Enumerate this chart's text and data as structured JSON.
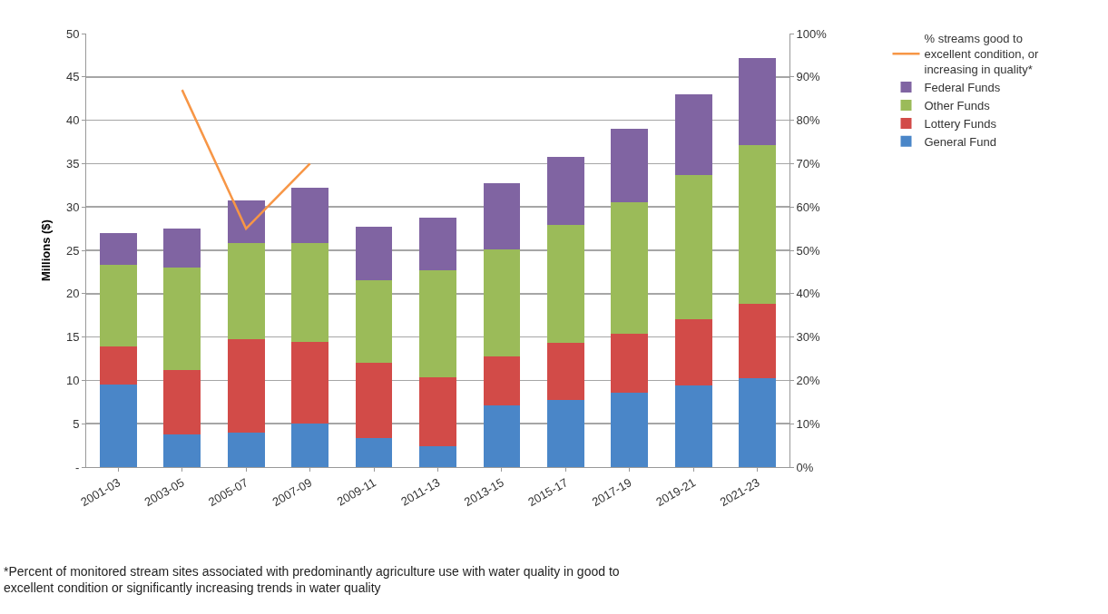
{
  "chart_data": {
    "type": "bar",
    "stacked": true,
    "ylabel": "Millions ($)",
    "categories": [
      "2001-03",
      "2003-05",
      "2005-07",
      "2007-09",
      "2009-11",
      "2011-13",
      "2013-15",
      "2015-17",
      "2017-19",
      "2019-21",
      "2021-23"
    ],
    "series": [
      {
        "name": "General Fund",
        "color": "#4a86c8",
        "values": [
          9.5,
          3.8,
          4.0,
          5.0,
          3.4,
          2.4,
          7.1,
          7.7,
          8.6,
          9.4,
          10.3
        ]
      },
      {
        "name": "Lottery Funds",
        "color": "#d24b48",
        "values": [
          4.4,
          7.4,
          10.7,
          9.4,
          8.6,
          8.0,
          5.7,
          6.6,
          6.8,
          7.7,
          8.5
        ]
      },
      {
        "name": "Other Funds",
        "color": "#9bbb59",
        "values": [
          9.4,
          11.8,
          11.1,
          11.4,
          9.5,
          12.3,
          12.3,
          13.6,
          15.1,
          16.6,
          18.3
        ]
      },
      {
        "name": "Federal Funds",
        "color": "#8064a2",
        "values": [
          3.7,
          4.5,
          5.0,
          6.4,
          6.2,
          6.1,
          7.6,
          7.9,
          8.5,
          9.3,
          10.1
        ]
      },
      {
        "name": "% streams good to excellent condition, or increasing in quality*",
        "type": "line",
        "axis": "y2",
        "color": "#f79646",
        "values": [
          null,
          87,
          55,
          70,
          null,
          null,
          null,
          null,
          null,
          null,
          null
        ]
      }
    ],
    "ylim": [
      0,
      50
    ],
    "yticks": [
      {
        "value": 0,
        "label": "-"
      },
      5,
      10,
      15,
      20,
      25,
      30,
      35,
      40,
      45,
      50
    ],
    "y2lim": [
      0,
      100
    ],
    "y2ticks": [
      {
        "value": 0,
        "label": "0%"
      },
      {
        "value": 10,
        "label": "10%"
      },
      {
        "value": 20,
        "label": "20%"
      },
      {
        "value": 30,
        "label": "30%"
      },
      {
        "value": 40,
        "label": "40%"
      },
      {
        "value": 50,
        "label": "50%"
      },
      {
        "value": 60,
        "label": "60%"
      },
      {
        "value": 70,
        "label": "70%"
      },
      {
        "value": 80,
        "label": "80%"
      },
      {
        "value": 90,
        "label": "90%"
      },
      {
        "value": 100,
        "label": "100%"
      }
    ],
    "grid": "y",
    "legend": "right",
    "line_style": "solid",
    "marker": "none",
    "annotations": [
      "*Percent of monitored stream sites associated with predominantly agriculture use with water quality in good to excellent condition or significantly increasing trends in water quality"
    ]
  }
}
